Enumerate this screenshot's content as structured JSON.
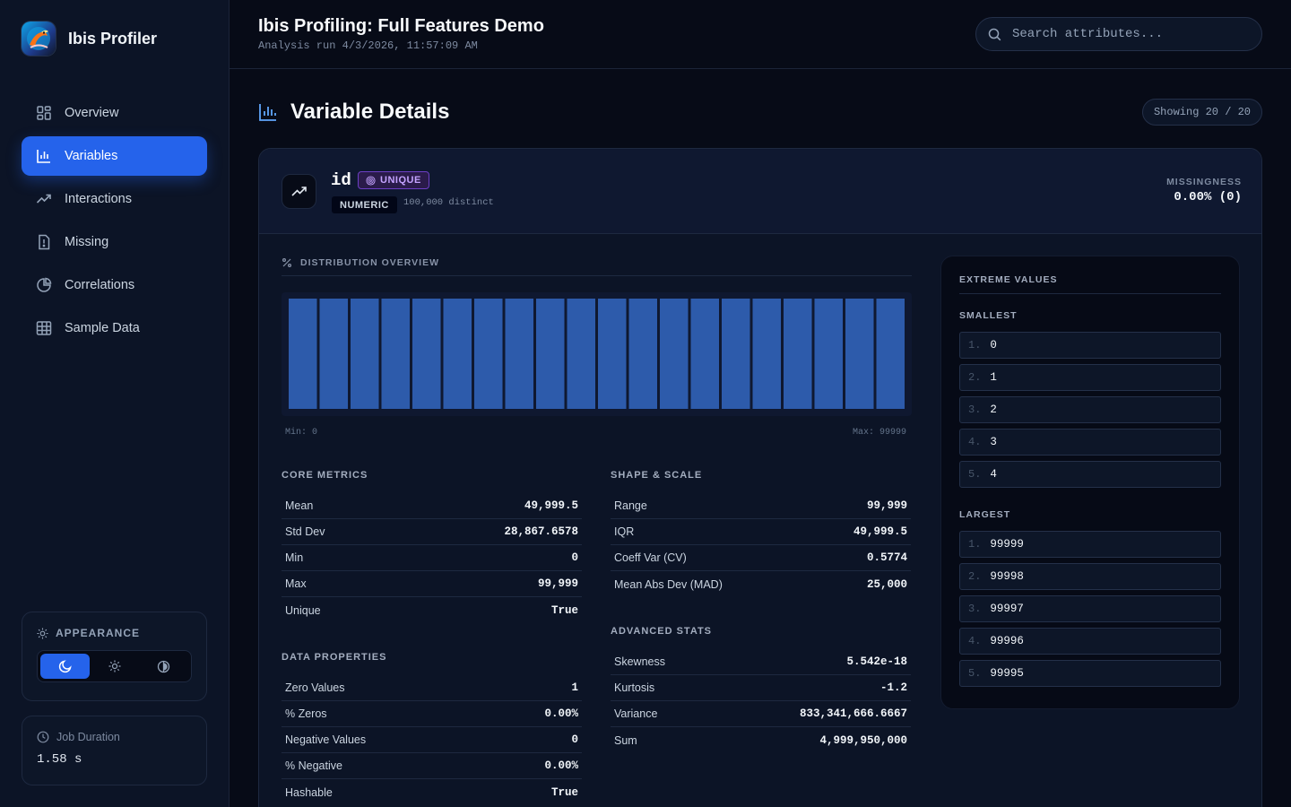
{
  "sidebar": {
    "brand": "Ibis Profiler",
    "nav": [
      {
        "label": "Overview",
        "icon": "grid-icon"
      },
      {
        "label": "Variables",
        "icon": "bar-chart-icon",
        "active": true
      },
      {
        "label": "Interactions",
        "icon": "trend-icon"
      },
      {
        "label": "Missing",
        "icon": "alert-file-icon"
      },
      {
        "label": "Correlations",
        "icon": "pie-chart-icon"
      },
      {
        "label": "Sample Data",
        "icon": "table-icon"
      }
    ],
    "appearance": {
      "title": "APPEARANCE",
      "selected": "dark"
    },
    "job": {
      "label": "Job Duration",
      "value": "1.58 s"
    }
  },
  "header": {
    "title": "Ibis Profiling: Full Features Demo",
    "subtitle": "Analysis run 4/3/2026, 11:57:09 AM",
    "search_placeholder": "Search attributes..."
  },
  "main": {
    "section_title": "Variable Details",
    "showing": "Showing 20 / 20"
  },
  "variable": {
    "name": "id",
    "unique_badge": "UNIQUE",
    "type_badge": "NUMERIC",
    "distinct": "100,000 distinct",
    "missing_label": "MISSINGNESS",
    "missing_value": "0.00% (0)",
    "distribution_title": "DISTRIBUTION OVERVIEW",
    "min_label": "Min: 0",
    "max_label": "Max: 99999",
    "histogram": {
      "bins": 20,
      "counts": [
        5000,
        5000,
        5000,
        5000,
        5000,
        5000,
        5000,
        5000,
        5000,
        5000,
        5000,
        5000,
        5000,
        5000,
        5000,
        5000,
        5000,
        5000,
        5000,
        5000
      ],
      "bar_color": "#2d5bab"
    },
    "core_metrics": {
      "title": "CORE METRICS",
      "rows": [
        {
          "label": "Mean",
          "value": "49,999.5"
        },
        {
          "label": "Std Dev",
          "value": "28,867.6578"
        },
        {
          "label": "Min",
          "value": "0"
        },
        {
          "label": "Max",
          "value": "99,999"
        },
        {
          "label": "Unique",
          "value": "True"
        }
      ]
    },
    "data_properties": {
      "title": "DATA PROPERTIES",
      "rows": [
        {
          "label": "Zero Values",
          "value": "1"
        },
        {
          "label": "% Zeros",
          "value": "0.00%"
        },
        {
          "label": "Negative Values",
          "value": "0"
        },
        {
          "label": "% Negative",
          "value": "0.00%"
        },
        {
          "label": "Hashable",
          "value": "True"
        }
      ]
    },
    "shape_scale": {
      "title": "SHAPE & SCALE",
      "rows": [
        {
          "label": "Range",
          "value": "99,999"
        },
        {
          "label": "IQR",
          "value": "49,999.5"
        },
        {
          "label": "Coeff Var (CV)",
          "value": "0.5774"
        },
        {
          "label": "Mean Abs Dev (MAD)",
          "value": "25,000"
        }
      ]
    },
    "advanced_stats": {
      "title": "ADVANCED STATS",
      "rows": [
        {
          "label": "Skewness",
          "value": "5.542e-18"
        },
        {
          "label": "Kurtosis",
          "value": "-1.2"
        },
        {
          "label": "Variance",
          "value": "833,341,666.6667"
        },
        {
          "label": "Sum",
          "value": "4,999,950,000"
        }
      ]
    },
    "extremes": {
      "title": "EXTREME VALUES",
      "smallest_label": "SMALLEST",
      "smallest": [
        {
          "rank": "1.",
          "value": "0"
        },
        {
          "rank": "2.",
          "value": "1"
        },
        {
          "rank": "3.",
          "value": "2"
        },
        {
          "rank": "4.",
          "value": "3"
        },
        {
          "rank": "5.",
          "value": "4"
        }
      ],
      "largest_label": "LARGEST",
      "largest": [
        {
          "rank": "1.",
          "value": "99999"
        },
        {
          "rank": "2.",
          "value": "99998"
        },
        {
          "rank": "3.",
          "value": "99997"
        },
        {
          "rank": "4.",
          "value": "99996"
        },
        {
          "rank": "5.",
          "value": "99995"
        }
      ]
    }
  }
}
